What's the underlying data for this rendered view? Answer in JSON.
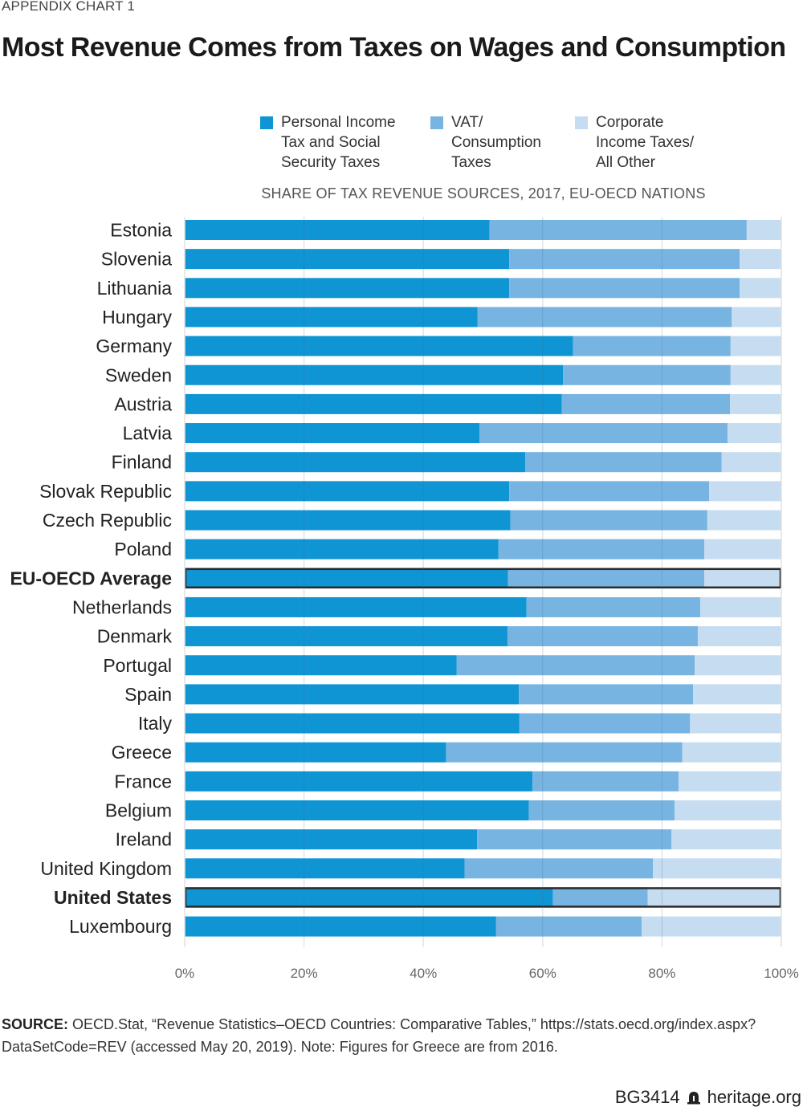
{
  "header": {
    "kicker": "APPENDIX CHART 1",
    "title": "Most Revenue Comes from Taxes on Wages and Consumption"
  },
  "footer": {
    "source_label": "SOURCE:",
    "source_text": "OECD.Stat, “Revenue Statistics–OECD Countries: Comparative Tables,” https://stats.oecd.org/index.aspx?DataSetCode=REV (accessed May 20, 2019). Note: Figures for Greece are from 2016.",
    "report_id": "BG3414",
    "logo_icon": "heritage-bell-icon",
    "site": "heritage.org"
  },
  "chart_data": {
    "type": "bar",
    "orientation": "horizontal",
    "stacked": true,
    "title": "SHARE OF TAX REVENUE SOURCES, 2017, EU-OECD NATIONS",
    "xlabel": "",
    "ylabel": "",
    "xlim": [
      0,
      100
    ],
    "x_ticks": [
      "0%",
      "20%",
      "40%",
      "60%",
      "80%",
      "100%"
    ],
    "x_tick_values": [
      0,
      20,
      40,
      60,
      80,
      100
    ],
    "grid": true,
    "legend_position": "top-center",
    "highlighted": [
      "EU-OECD Average",
      "United States"
    ],
    "categories": [
      "Estonia",
      "Slovenia",
      "Lithuania",
      "Hungary",
      "Germany",
      "Sweden",
      "Austria",
      "Latvia",
      "Finland",
      "Slovak Republic",
      "Czech Republic",
      "Poland",
      "EU-OECD Average",
      "Netherlands",
      "Denmark",
      "Portugal",
      "Spain",
      "Italy",
      "Greece",
      "France",
      "Belgium",
      "Ireland",
      "United Kingdom",
      "United States",
      "Luxembourg"
    ],
    "series": [
      {
        "name": "Personal Income\nTax and Social\nSecurity Taxes",
        "color": "#0f95d3",
        "values": [
          51.1,
          54.4,
          54.4,
          49.1,
          65.1,
          63.4,
          63.2,
          49.4,
          57.1,
          54.4,
          54.6,
          52.6,
          54.2,
          57.3,
          54.1,
          45.6,
          56.0,
          56.1,
          43.8,
          58.3,
          57.7,
          49.0,
          46.9,
          61.7,
          52.2
        ]
      },
      {
        "name": "VAT/\nConsumption\nTaxes",
        "color": "#78b4e1",
        "values": [
          43.1,
          38.6,
          38.6,
          42.6,
          26.4,
          28.1,
          28.2,
          41.6,
          32.9,
          33.5,
          33.0,
          34.5,
          32.9,
          29.1,
          31.9,
          39.9,
          29.2,
          28.6,
          39.6,
          24.5,
          24.4,
          32.6,
          31.6,
          15.9,
          24.4
        ]
      },
      {
        "name": "Corporate\nIncome Taxes/\nAll Other",
        "color": "#c6ddf1",
        "values": [
          5.8,
          7.0,
          7.0,
          8.3,
          8.5,
          8.5,
          8.6,
          9.0,
          10.0,
          12.1,
          12.4,
          12.9,
          12.9,
          13.6,
          14.0,
          14.5,
          14.8,
          15.3,
          16.6,
          17.2,
          17.9,
          18.4,
          21.5,
          22.4,
          23.4
        ]
      }
    ]
  }
}
